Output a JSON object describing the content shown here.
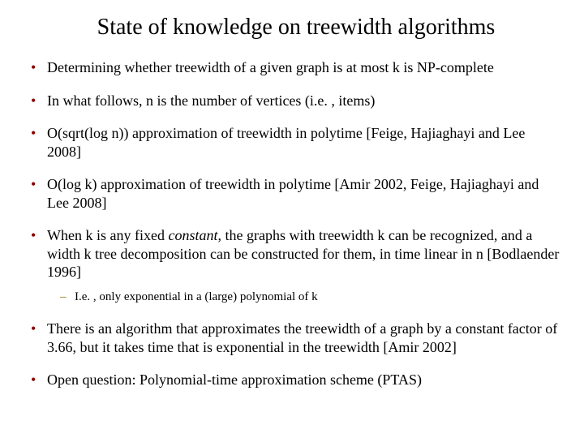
{
  "title": "State of knowledge on treewidth algorithms",
  "bullets": {
    "b0": "Determining whether treewidth of a given graph is at most k is NP-complete",
    "b1": "In what follows, n is the number of vertices (i.e. , items)",
    "b2": "O(sqrt(log n)) approximation of treewidth in polytime [Feige, Hajiaghayi and Lee 2008]",
    "b3": "O(log k) approximation of treewidth in polytime [Amir 2002, Feige, Hajiaghayi and Lee 2008]",
    "b4_pre": "When k is any fixed ",
    "b4_italic": "constant",
    "b4_post": ", the graphs with treewidth k can be recognized, and a width k tree decomposition can be constructed for them, in time linear in n [Bodlaender 1996]",
    "b4_sub": "I.e. , only exponential in a (large) polynomial of k",
    "b5": "There is an algorithm that approximates the treewidth of a graph by a constant factor of 3.66, but it takes time that is exponential in the treewidth [Amir 2002]",
    "b6": "Open question: Polynomial-time approximation scheme (PTAS)"
  },
  "colors": {
    "bullet_main": "#8b0000",
    "bullet_sub": "#8b7500",
    "text": "#000000",
    "background": "#ffffff"
  }
}
